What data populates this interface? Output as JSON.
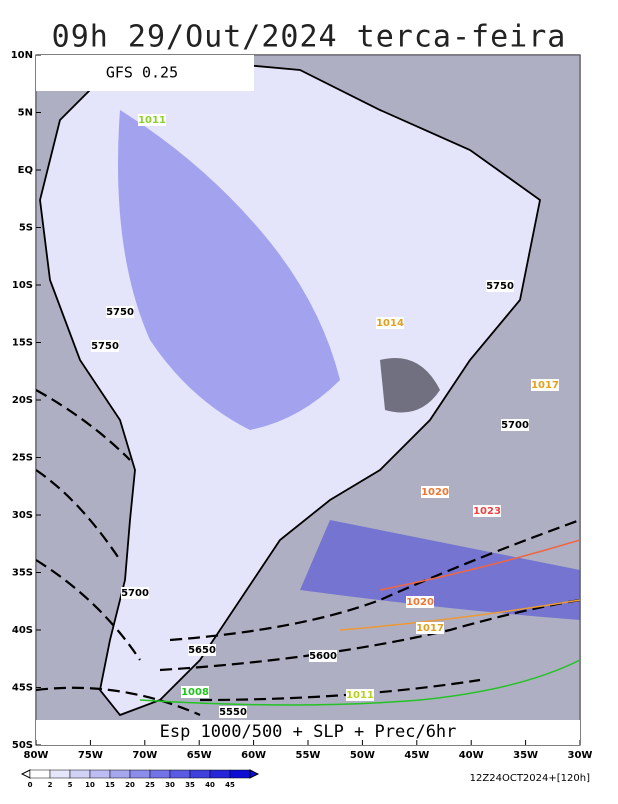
{
  "title": "09h 29/Out/2024 terca-feira",
  "model": "GFS 0.25",
  "footer": "Esp 1000/500 + SLP + Prec/6hr",
  "run_label": "12Z24OCT2024+[120h]",
  "lat_labels": [
    "10N",
    "5N",
    "EQ",
    "5S",
    "10S",
    "15S",
    "20S",
    "25S",
    "30S",
    "35S",
    "40S",
    "45S",
    "50S"
  ],
  "lon_labels": [
    "80W",
    "75W",
    "70W",
    "65W",
    "60W",
    "55W",
    "50W",
    "45W",
    "40W",
    "35W",
    "30W"
  ],
  "colorbar": {
    "labels": [
      0,
      2,
      5,
      10,
      15,
      20,
      25,
      30,
      35,
      40,
      45
    ],
    "colors": [
      "#ffffff",
      "#e6e6fa",
      "#d2d2f6",
      "#bdbdf3",
      "#a6a6ef",
      "#8c8cea",
      "#7373e6",
      "#5a5ae2",
      "#4040dd",
      "#2626d9",
      "#0d0dd4"
    ]
  },
  "contour_labels": [
    "5750",
    "5750",
    "5700",
    "5650",
    "5600",
    "5550",
    "5750",
    "5700",
    "1011",
    "1014",
    "1017",
    "1020",
    "1023",
    "1008",
    "1011",
    "1017",
    "1020"
  ]
}
